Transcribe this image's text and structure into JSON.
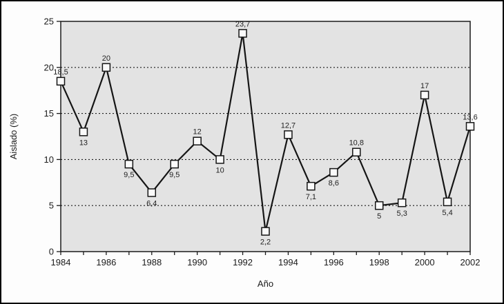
{
  "figure": {
    "frame_color": "#000000",
    "background": "#fdfdfd"
  },
  "chart_data": {
    "type": "line",
    "title": "",
    "xlabel": "Año",
    "ylabel": "Aislado (%)",
    "x": [
      1984,
      1985,
      1986,
      1987,
      1988,
      1989,
      1990,
      1991,
      1992,
      1993,
      1994,
      1995,
      1996,
      1997,
      1998,
      1999,
      2000,
      2001,
      2002
    ],
    "values": [
      18.5,
      13,
      20,
      9.5,
      6.4,
      9.5,
      12,
      10,
      23.7,
      2.2,
      12.7,
      7.1,
      8.6,
      10.8,
      5,
      5.3,
      17,
      5.4,
      13.6
    ],
    "point_labels": [
      "18,5",
      "13",
      "20",
      "9,5",
      "6,4",
      "9,5",
      "12",
      "10",
      "23,7",
      "2,2",
      "12,7",
      "7,1",
      "8,6",
      "10,8",
      "5",
      "5,3",
      "17",
      "5,4",
      "13,6"
    ],
    "label_positions": [
      "above",
      "below",
      "above",
      "below",
      "below",
      "below",
      "above",
      "below",
      "above",
      "below",
      "above",
      "below",
      "below",
      "above",
      "below",
      "below",
      "above",
      "below",
      "above"
    ],
    "ylim": [
      0,
      25
    ],
    "yticks": [
      0,
      5,
      10,
      15,
      20,
      25
    ],
    "xtick_labels": [
      "1984",
      "1986",
      "1988",
      "1990",
      "1992",
      "1994",
      "1996",
      "1998",
      "2000",
      "2002"
    ],
    "grid_values": [
      5,
      10,
      15,
      20
    ],
    "grid_style": "dotted",
    "legend": "none",
    "marker": "square",
    "line_color": "#151515",
    "marker_fill": "#fafafa",
    "plot_background": "#e3e3e3",
    "text_color": "#1a1a1a"
  }
}
